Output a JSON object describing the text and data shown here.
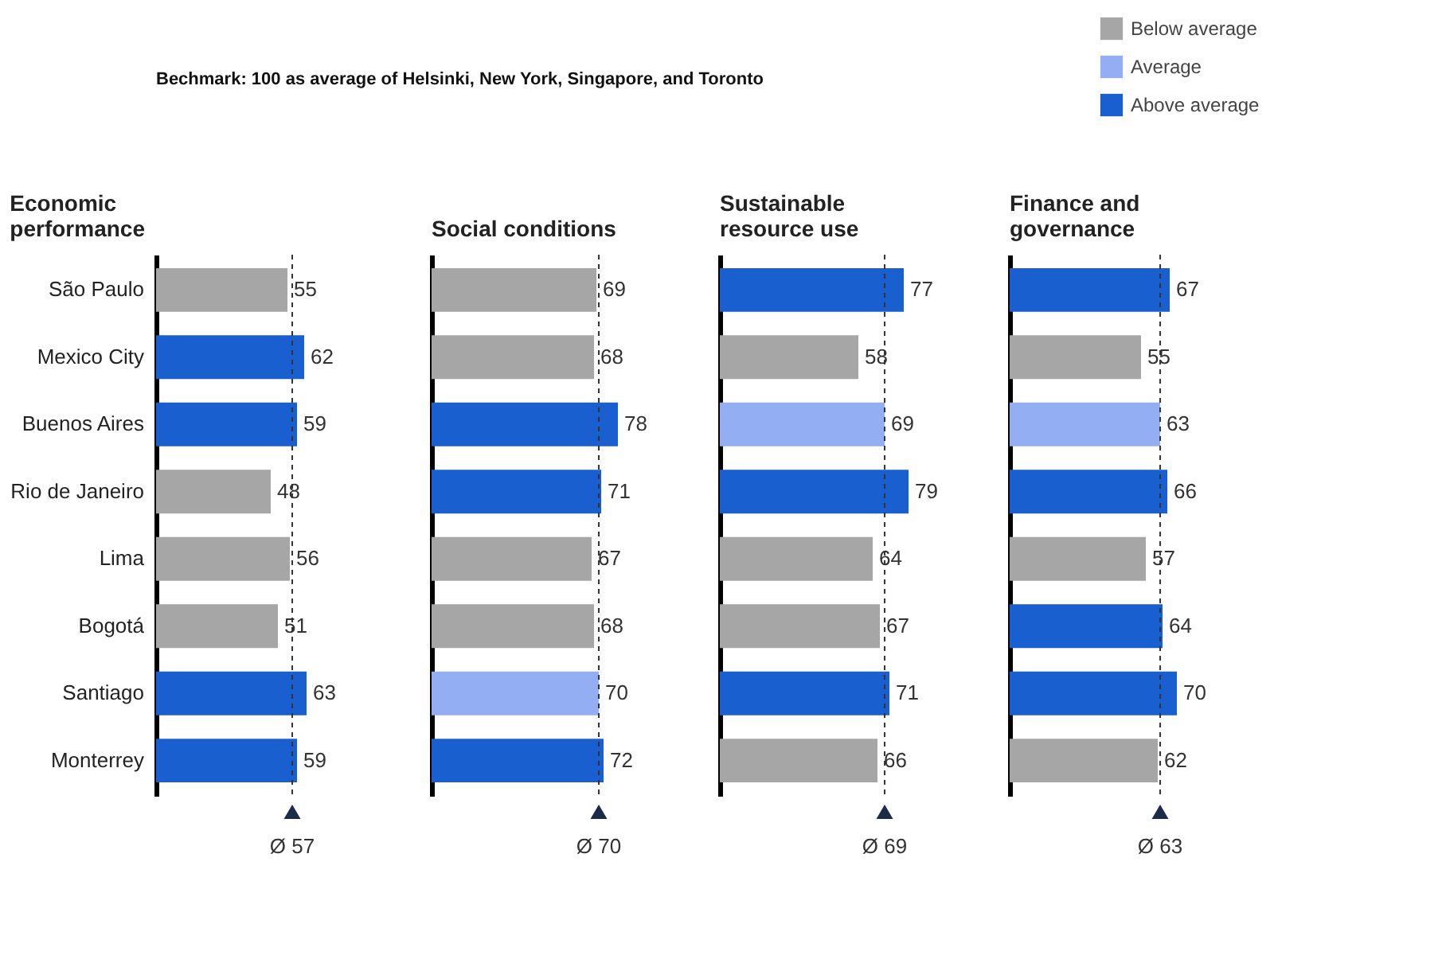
{
  "chart_data": [
    {
      "type": "bar",
      "orientation": "horizontal",
      "title": "Bechmark: 100 as average of Helsinki, New York, Singapore, and Toronto",
      "subtitle": "Economic performance",
      "categories": [
        "São Paulo",
        "Mexico City",
        "Buenos Aires",
        "Rio de Janeiro",
        "Lima",
        "Bogotá",
        "Santiago",
        "Monterrey"
      ],
      "series": [
        {
          "name": "Below average",
          "color": "#a6a6a6",
          "values": [
            55,
            null,
            null,
            48,
            56,
            51,
            null,
            null
          ]
        },
        {
          "name": "Above average",
          "color": "#1a5fd0",
          "values": [
            null,
            62,
            59,
            null,
            null,
            null,
            63,
            59
          ]
        }
      ],
      "data_labels": true,
      "tick_labels": "y",
      "legend": "top right",
      "ref_lines": [
        {
          "axis": "x",
          "value": 57,
          "label": "Ø 57",
          "line_style": "dashed"
        }
      ]
    },
    {
      "type": "bar",
      "orientation": "horizontal",
      "subtitle": "Social conditions",
      "categories": [
        null,
        null,
        null,
        null,
        null,
        null,
        null,
        null
      ],
      "series": [
        {
          "name": "Below average",
          "color": "#a6a6a6",
          "values": [
            69,
            68,
            null,
            null,
            67,
            68,
            null,
            null
          ]
        },
        {
          "name": "Average",
          "color": "#93aef2",
          "values": [
            null,
            null,
            null,
            null,
            null,
            null,
            70,
            null
          ]
        },
        {
          "name": "Above average",
          "color": "#1a5fd0",
          "values": [
            null,
            null,
            78,
            71,
            null,
            null,
            null,
            72
          ]
        }
      ],
      "data_labels": true,
      "tick_labels": false,
      "ref_lines": [
        {
          "axis": "x",
          "value": 70,
          "label": "Ø 70",
          "line_style": "dashed"
        }
      ]
    },
    {
      "type": "bar",
      "orientation": "horizontal",
      "subtitle": "Sustainable resource use",
      "categories": [
        null,
        null,
        null,
        null,
        null,
        null,
        null,
        null
      ],
      "series": [
        {
          "name": "Below average",
          "color": "#a6a6a6",
          "values": [
            null,
            58,
            null,
            null,
            64,
            67,
            null,
            66
          ]
        },
        {
          "name": "Average",
          "color": "#93aef2",
          "values": [
            null,
            null,
            69,
            null,
            null,
            null,
            null,
            null
          ]
        },
        {
          "name": "Above average",
          "color": "#1a5fd0",
          "values": [
            77,
            null,
            null,
            79,
            null,
            null,
            71,
            null
          ]
        }
      ],
      "data_labels": true,
      "tick_labels": false,
      "ref_lines": [
        {
          "axis": "x",
          "value": 69,
          "label": "Ø 69",
          "line_style": "dashed"
        }
      ]
    },
    {
      "type": "bar",
      "orientation": "horizontal",
      "subtitle": "Finance and governance",
      "categories": [
        null,
        null,
        null,
        null,
        null,
        null,
        null,
        null
      ],
      "series": [
        {
          "name": "Below average",
          "color": "#a6a6a6",
          "values": [
            null,
            55,
            null,
            null,
            57,
            null,
            null,
            62
          ]
        },
        {
          "name": "Average",
          "color": "#93aef2",
          "values": [
            null,
            null,
            63,
            null,
            null,
            null,
            null,
            null
          ]
        },
        {
          "name": "Above average",
          "color": "#1a5fd0",
          "values": [
            67,
            null,
            null,
            66,
            null,
            64,
            70,
            null
          ]
        }
      ],
      "data_labels": true,
      "tick_labels": false,
      "ref_lines": [
        {
          "axis": "x",
          "value": 63,
          "label": "Ø 63",
          "line_style": "dashed"
        }
      ]
    }
  ]
}
